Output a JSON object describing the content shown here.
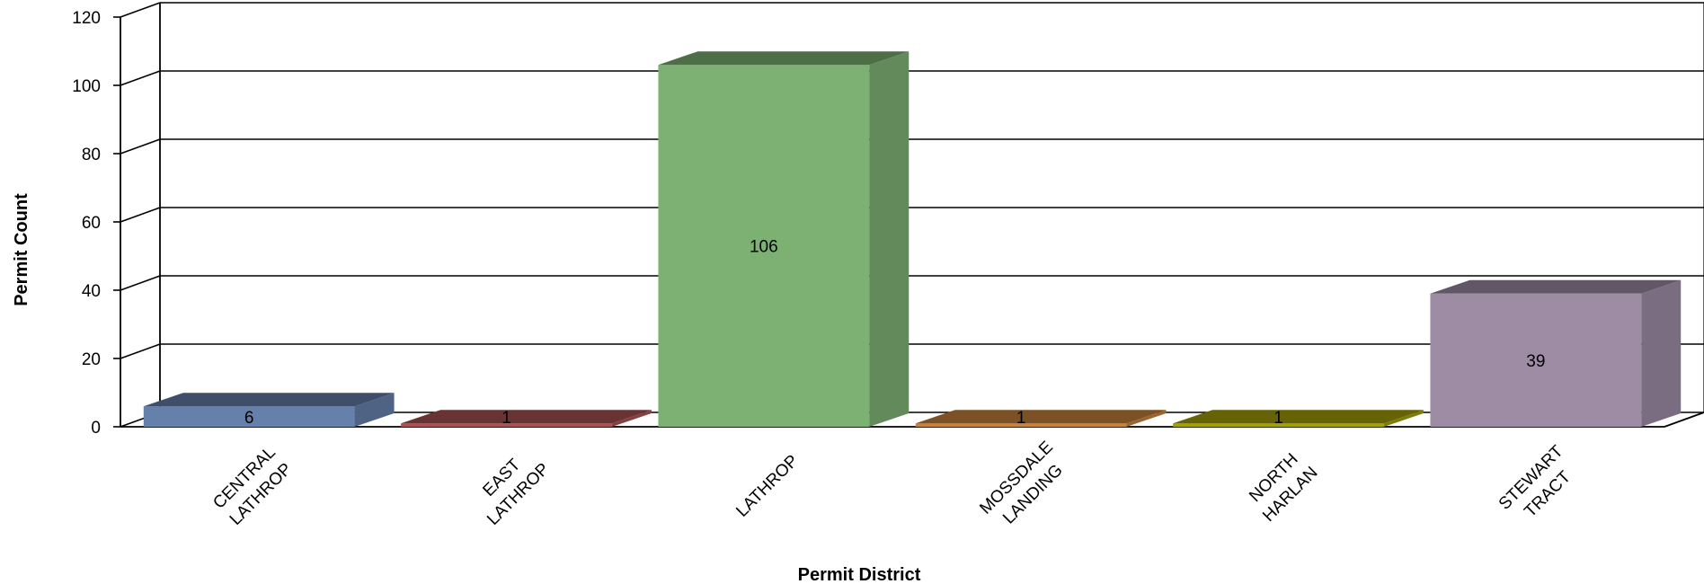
{
  "chart_data": {
    "type": "bar",
    "categories": [
      [
        "CENTRAL",
        "LATHROP"
      ],
      [
        "EAST",
        "LATHROP"
      ],
      [
        "LATHROP"
      ],
      [
        "MOSSDALE",
        "LANDING"
      ],
      [
        "NORTH",
        "HARLAN"
      ],
      [
        "STEWART",
        "TRACT"
      ]
    ],
    "values": [
      6,
      1,
      106,
      1,
      1,
      39
    ],
    "data_labels": [
      "6",
      "1",
      "106",
      "1",
      "1",
      "39"
    ],
    "colors": [
      "#6580AA",
      "#A85352",
      "#7DB174",
      "#C7823C",
      "#A3A00A",
      "#9E8CA5"
    ],
    "xlabel": "Permit District",
    "ylabel": "Permit Count",
    "ylim": [
      0,
      120
    ],
    "yticks": [
      "0",
      "20",
      "40",
      "60",
      "80",
      "100",
      "120"
    ],
    "grid": true,
    "style": "3d-bar"
  }
}
